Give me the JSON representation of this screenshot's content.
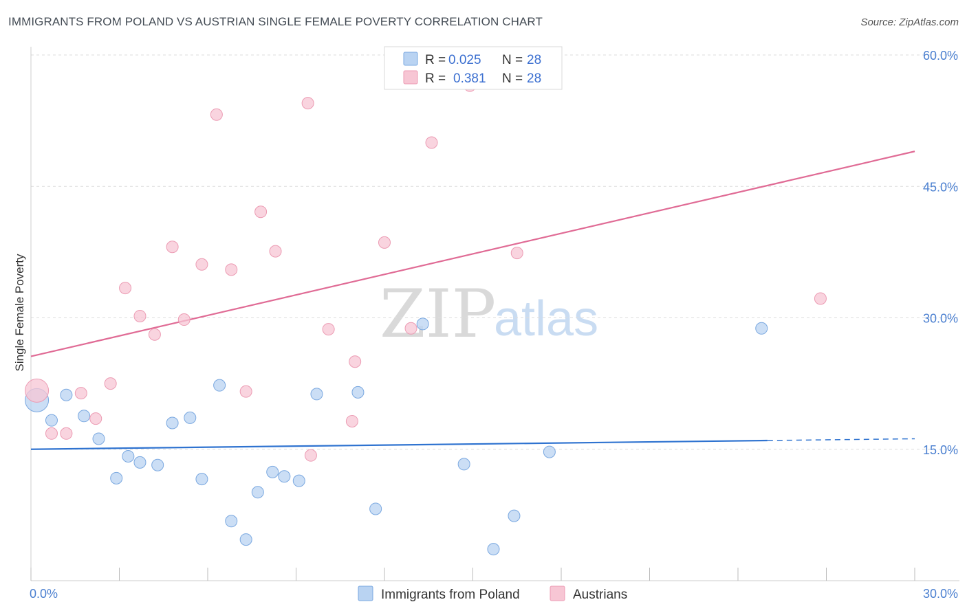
{
  "title": "IMMIGRANTS FROM POLAND VS AUSTRIAN SINGLE FEMALE POVERTY CORRELATION CHART",
  "source": "Source: ZipAtlas.com",
  "watermark": {
    "zip": "ZIP",
    "atlas": "atlas"
  },
  "colors": {
    "blue_fill": "#b9d3f2",
    "blue_stroke": "#7aa8e0",
    "blue_line": "#2f73d0",
    "pink_fill": "#f7c6d4",
    "pink_stroke": "#ec9bb3",
    "pink_line": "#e06b95",
    "grid": "#dcdcdc",
    "tick_text": "#4a7fd0"
  },
  "legend": {
    "rows": [
      {
        "r_label": "R =",
        "r_value": "0.025",
        "n_label": "N =",
        "n_value": "28"
      },
      {
        "r_label": "R =",
        "r_value": "0.381",
        "n_label": "N =",
        "n_value": "28"
      }
    ]
  },
  "bottom_legend": [
    "Immigrants from Poland",
    "Austrians"
  ],
  "chart_data": {
    "type": "scatter",
    "title": "IMMIGRANTS FROM POLAND VS AUSTRIAN SINGLE FEMALE POVERTY CORRELATION CHART",
    "xlabel": "",
    "ylabel": "Single Female Poverty",
    "xlim": [
      0,
      30
    ],
    "ylim": [
      0,
      60
    ],
    "x_tick_labels": [
      "0.0%",
      "30.0%"
    ],
    "y_ticks": [
      15,
      30,
      45,
      60
    ],
    "y_tick_labels": [
      "15.0%",
      "30.0%",
      "45.0%",
      "60.0%"
    ],
    "series": [
      {
        "name": "Immigrants from Poland",
        "color": "blue",
        "r": 0.025,
        "n": 28,
        "trend": {
          "x0": 0,
          "y0": 15.0,
          "x1": 25,
          "y1": 16.0,
          "dash_to_x": 30,
          "dash_to_y": 16.2
        },
        "points": [
          {
            "x": 0.2,
            "y": 20.6,
            "big": true
          },
          {
            "x": 1.2,
            "y": 21.2
          },
          {
            "x": 0.7,
            "y": 18.3
          },
          {
            "x": 1.8,
            "y": 18.8
          },
          {
            "x": 2.3,
            "y": 16.2
          },
          {
            "x": 2.9,
            "y": 11.7
          },
          {
            "x": 3.3,
            "y": 14.2
          },
          {
            "x": 3.7,
            "y": 13.5
          },
          {
            "x": 4.3,
            "y": 13.2
          },
          {
            "x": 4.8,
            "y": 18.0
          },
          {
            "x": 5.4,
            "y": 18.6
          },
          {
            "x": 5.8,
            "y": 11.6
          },
          {
            "x": 6.4,
            "y": 22.3
          },
          {
            "x": 6.8,
            "y": 6.8
          },
          {
            "x": 7.3,
            "y": 4.7
          },
          {
            "x": 7.7,
            "y": 10.1
          },
          {
            "x": 8.2,
            "y": 12.4
          },
          {
            "x": 8.6,
            "y": 11.9
          },
          {
            "x": 9.1,
            "y": 11.4
          },
          {
            "x": 9.7,
            "y": 21.3
          },
          {
            "x": 11.1,
            "y": 21.5
          },
          {
            "x": 11.7,
            "y": 8.2
          },
          {
            "x": 13.3,
            "y": 29.3
          },
          {
            "x": 14.7,
            "y": 13.3
          },
          {
            "x": 15.7,
            "y": 3.6
          },
          {
            "x": 16.4,
            "y": 7.4
          },
          {
            "x": 17.6,
            "y": 14.7
          },
          {
            "x": 24.8,
            "y": 28.8
          }
        ]
      },
      {
        "name": "Austrians",
        "color": "pink",
        "r": 0.381,
        "n": 28,
        "trend": {
          "x0": 0,
          "y0": 25.6,
          "x1": 30,
          "y1": 49.0
        },
        "points": [
          {
            "x": 0.2,
            "y": 21.7,
            "big": true
          },
          {
            "x": 0.7,
            "y": 16.8
          },
          {
            "x": 1.2,
            "y": 16.8
          },
          {
            "x": 1.7,
            "y": 21.4
          },
          {
            "x": 2.2,
            "y": 18.5
          },
          {
            "x": 2.7,
            "y": 22.5
          },
          {
            "x": 3.2,
            "y": 33.4
          },
          {
            "x": 3.7,
            "y": 30.2
          },
          {
            "x": 4.2,
            "y": 28.1
          },
          {
            "x": 4.8,
            "y": 38.1
          },
          {
            "x": 5.2,
            "y": 29.8
          },
          {
            "x": 5.8,
            "y": 36.1
          },
          {
            "x": 6.3,
            "y": 53.2
          },
          {
            "x": 6.8,
            "y": 35.5
          },
          {
            "x": 7.3,
            "y": 21.6
          },
          {
            "x": 7.8,
            "y": 42.1
          },
          {
            "x": 8.3,
            "y": 37.6
          },
          {
            "x": 9.4,
            "y": 54.5
          },
          {
            "x": 9.5,
            "y": 14.3
          },
          {
            "x": 10.1,
            "y": 28.7
          },
          {
            "x": 10.9,
            "y": 18.2
          },
          {
            "x": 11.0,
            "y": 25.0
          },
          {
            "x": 12.0,
            "y": 38.6
          },
          {
            "x": 12.9,
            "y": 28.8
          },
          {
            "x": 13.6,
            "y": 50.0
          },
          {
            "x": 14.9,
            "y": 56.5
          },
          {
            "x": 16.5,
            "y": 37.4
          },
          {
            "x": 26.8,
            "y": 32.2
          }
        ]
      }
    ]
  }
}
